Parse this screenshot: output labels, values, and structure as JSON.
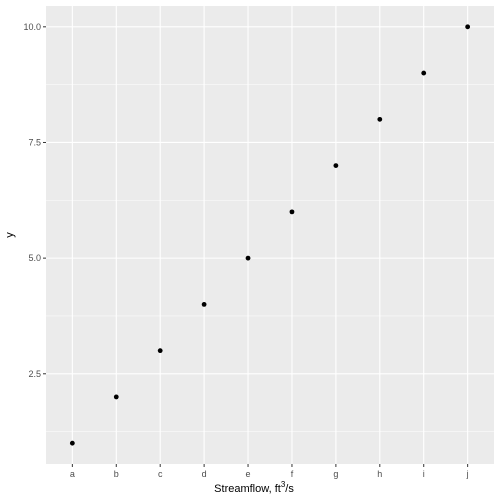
{
  "chart_data": {
    "type": "scatter",
    "x": [
      "a",
      "b",
      "c",
      "d",
      "e",
      "f",
      "g",
      "h",
      "i",
      "j"
    ],
    "y": [
      1,
      2,
      3,
      4,
      5,
      6,
      7,
      8,
      9,
      10
    ],
    "xlabel_main": "Streamflow,  ft",
    "xlabel_sup": "3",
    "xlabel_tail": "/s",
    "ylabel": "y",
    "ylim": [
      0.55,
      10.45
    ],
    "y_ticks": [
      2.5,
      5.0,
      7.5,
      10.0
    ],
    "y_tick_labels": [
      "2.5",
      "5.0",
      "7.5",
      "10.0"
    ],
    "y_minor_ticks": [
      1.25,
      3.75,
      6.25,
      8.75
    ],
    "grid": true,
    "legend": "none",
    "colors": {
      "panel": "#ebebeb",
      "grid": "#ffffff",
      "point": "#000000",
      "tick_text": "#4d4d4d",
      "tick_mark": "#333333"
    }
  }
}
